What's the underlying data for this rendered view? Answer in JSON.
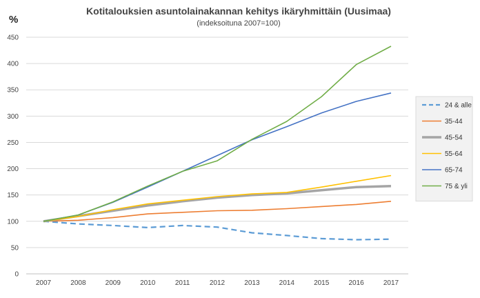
{
  "chart_data": {
    "type": "line",
    "title": "Kotitalouksien asuntolainakannan kehitys ikäryhmittäin (Uusimaa)",
    "subtitle": "(indeksoituna 2007=100)",
    "ylabel": "%",
    "ylim": [
      0,
      450
    ],
    "yticks": [
      "0",
      "50",
      "100",
      "150",
      "200",
      "250",
      "300",
      "350",
      "400",
      "450"
    ],
    "categories": [
      "2007",
      "2008",
      "2009",
      "2010",
      "2011",
      "2012",
      "2013",
      "2014",
      "2015",
      "2016",
      "2017"
    ],
    "grid": true,
    "legend_position": "right",
    "series": [
      {
        "name": "24 & alle",
        "color": "#5b9bd5",
        "dashed": true,
        "thick": false,
        "values": [
          100,
          95,
          92,
          88,
          92,
          89,
          78,
          73,
          67,
          65,
          66
        ]
      },
      {
        "name": "35-44",
        "color": "#ed7d31",
        "dashed": false,
        "thick": false,
        "values": [
          100,
          102,
          107,
          114,
          117,
          120,
          121,
          124,
          128,
          132,
          138
        ]
      },
      {
        "name": "45-54",
        "color": "#a5a5a5",
        "dashed": false,
        "thick": true,
        "values": [
          100,
          110,
          120,
          130,
          138,
          145,
          150,
          153,
          159,
          165,
          167
        ]
      },
      {
        "name": "55-64",
        "color": "#ffc000",
        "dashed": false,
        "thick": false,
        "values": [
          100,
          109,
          122,
          133,
          140,
          147,
          152,
          155,
          165,
          176,
          187
        ]
      },
      {
        "name": "65-74",
        "color": "#4472c4",
        "dashed": false,
        "thick": false,
        "values": [
          100,
          112,
          136,
          165,
          195,
          225,
          255,
          280,
          306,
          328,
          344
        ]
      },
      {
        "name": "75 & yli",
        "color": "#70ad47",
        "dashed": false,
        "thick": false,
        "values": [
          100,
          112,
          137,
          167,
          195,
          215,
          256,
          290,
          337,
          398,
          433
        ]
      }
    ]
  }
}
